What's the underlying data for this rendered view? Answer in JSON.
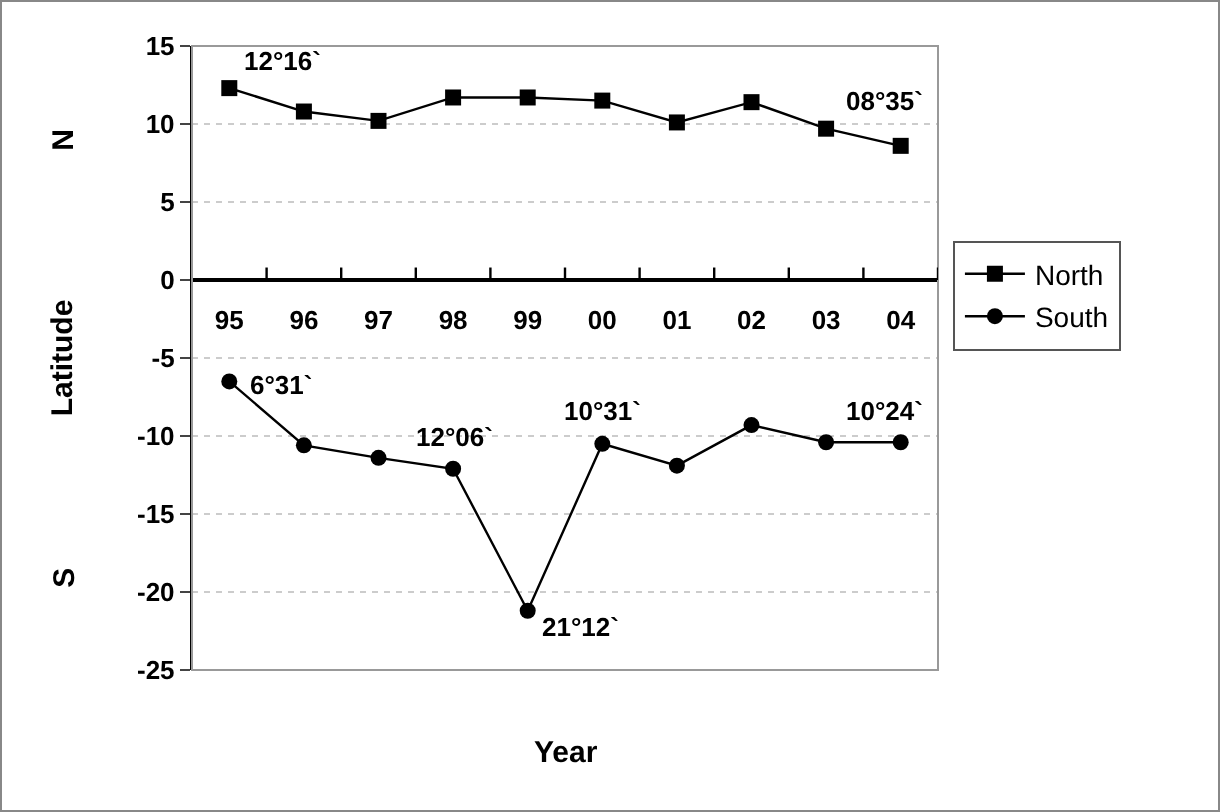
{
  "chart_data": {
    "type": "line",
    "ylabel": "Latitude",
    "xlabel": "Year",
    "categories": [
      "95",
      "96",
      "97",
      "98",
      "99",
      "00",
      "01",
      "02",
      "03",
      "04"
    ],
    "series": [
      {
        "name": "North",
        "color": "#000000",
        "marker": "square",
        "values": [
          12.3,
          10.8,
          10.2,
          11.7,
          11.7,
          11.5,
          10.1,
          11.4,
          9.7,
          8.6
        ]
      },
      {
        "name": "South",
        "color": "#000000",
        "marker": "circle",
        "values": [
          -6.5,
          -10.6,
          -11.4,
          -12.1,
          -21.2,
          -10.5,
          -11.9,
          -9.3,
          -10.4,
          -10.4
        ]
      }
    ],
    "ylim": [
      -25,
      15
    ],
    "yticks": [
      -25,
      -20,
      -15,
      -10,
      -5,
      0,
      5,
      10,
      15
    ],
    "grid": "y",
    "legend": "right",
    "line_style": "solid",
    "annotations": [
      "N",
      "S",
      {
        "text": "12°16`",
        "x": "95",
        "y": 12.3
      },
      {
        "text": "08°35`",
        "x": "04",
        "y": 8.6
      },
      {
        "text": "6°31`",
        "x": "95",
        "y": -6.5
      },
      {
        "text": "12°06`",
        "x": "98",
        "y": -12.1
      },
      {
        "text": "21°12`",
        "x": "99",
        "y": -21.2
      },
      {
        "text": "10°31`",
        "x": "00",
        "y": -10.5
      },
      {
        "text": "10°24`",
        "x": "04",
        "y": -10.4
      }
    ]
  }
}
